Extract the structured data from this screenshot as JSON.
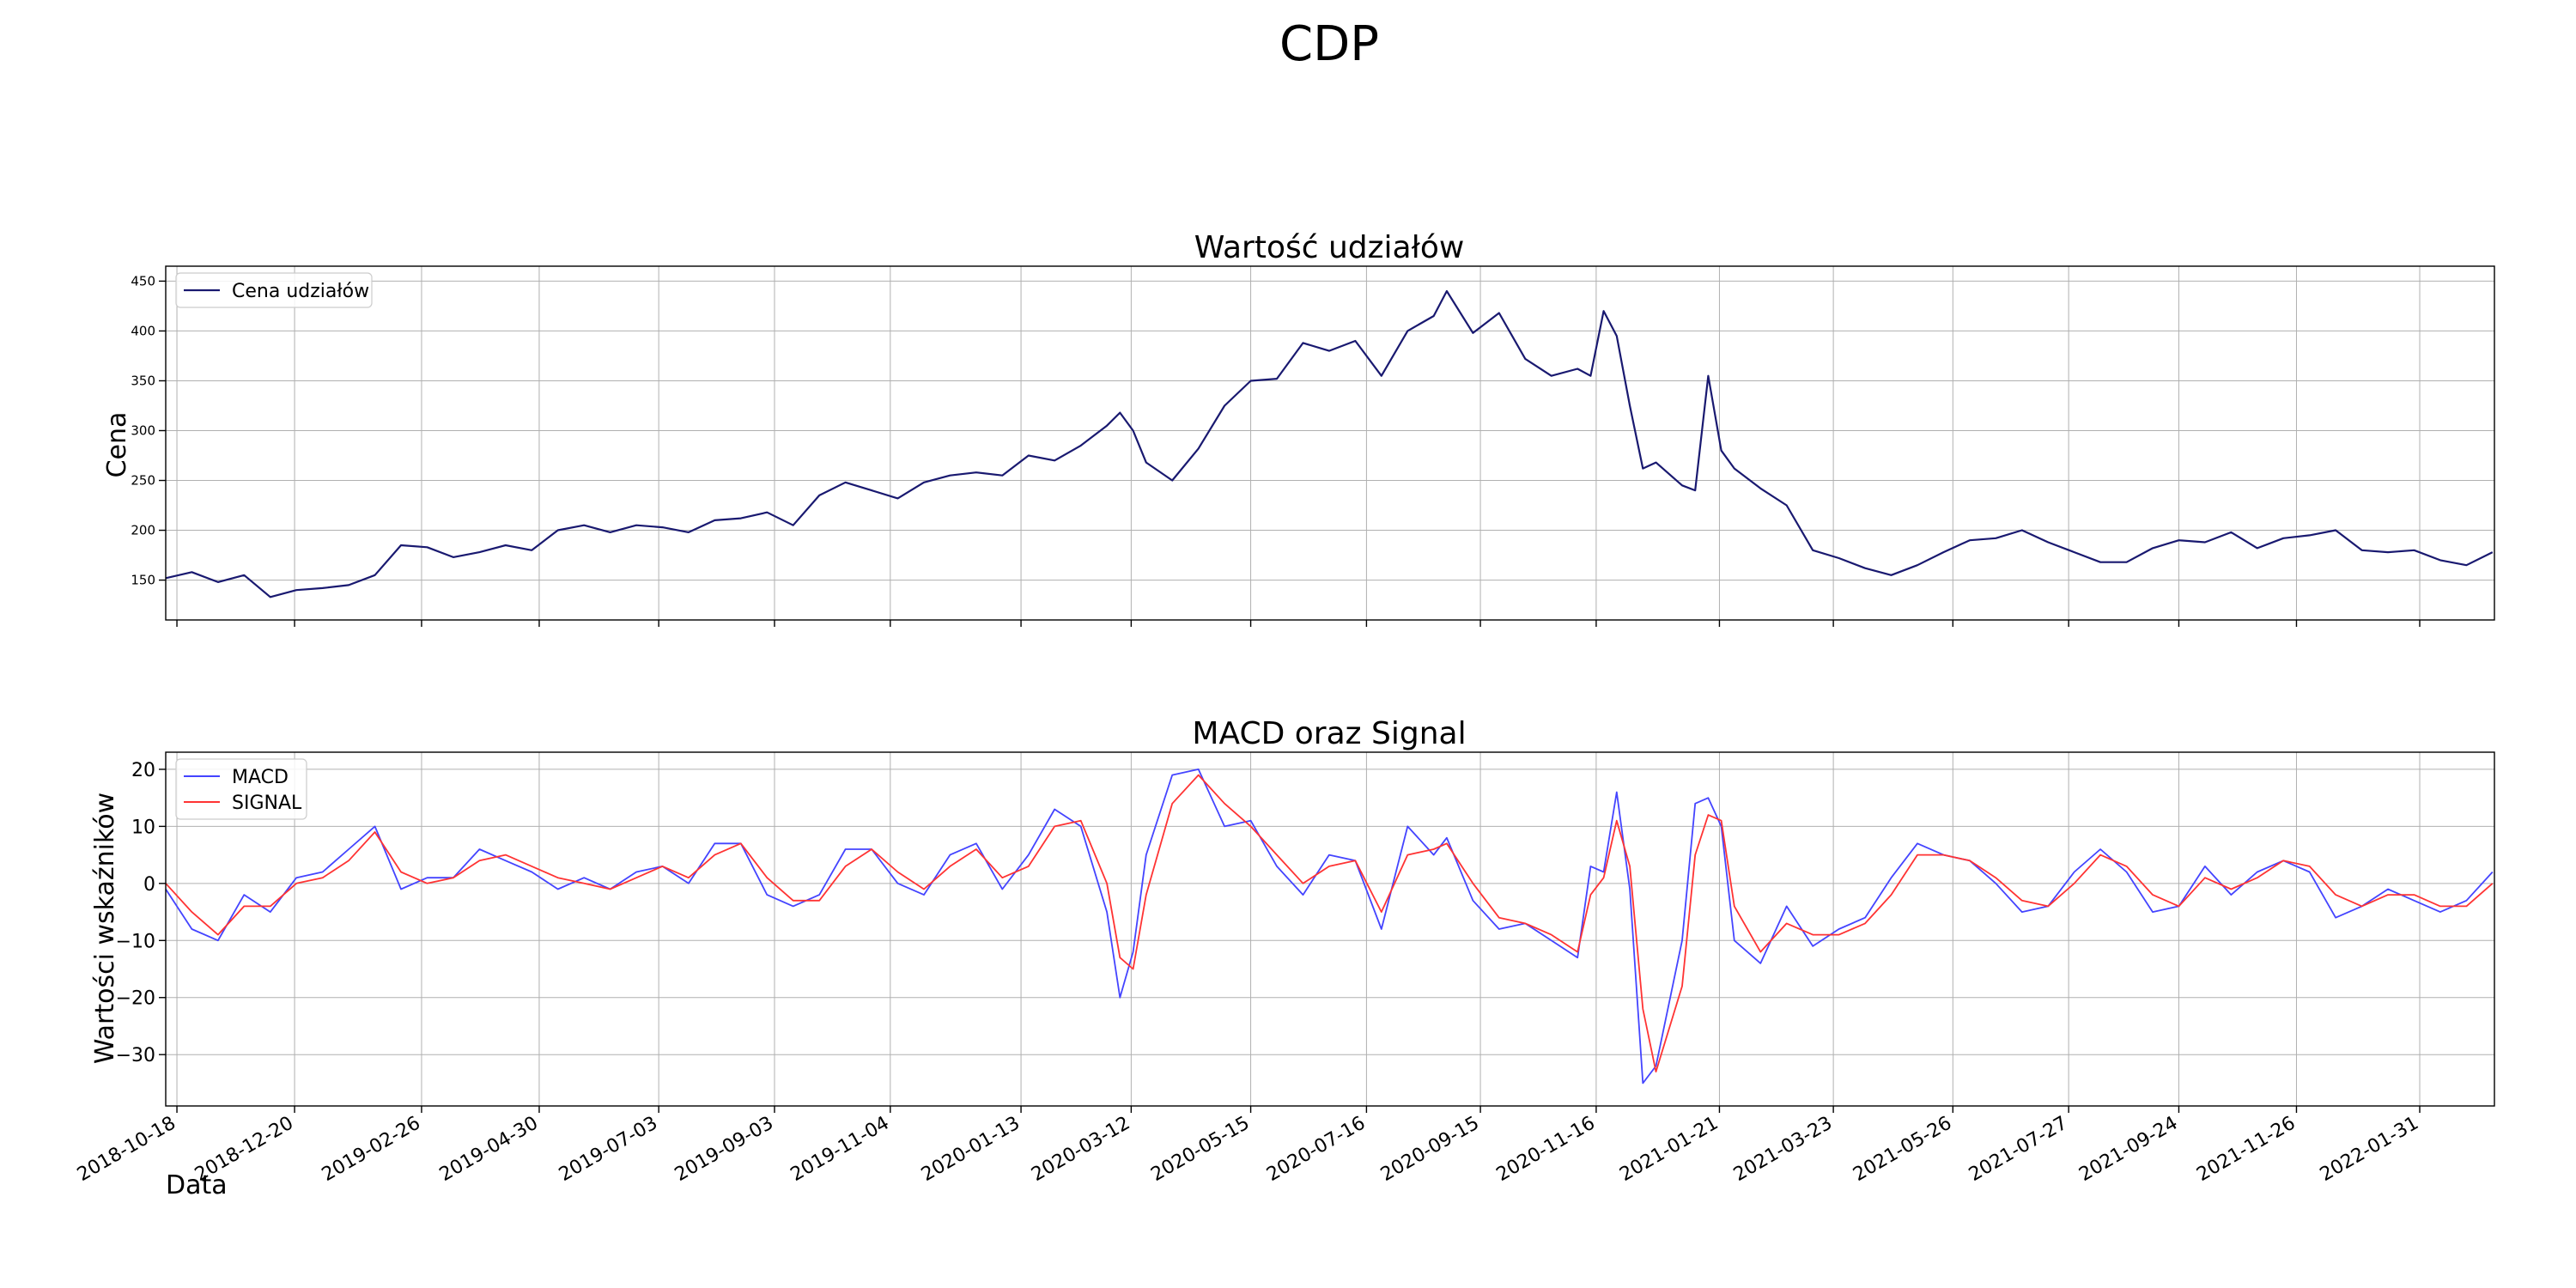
{
  "suptitle": "CDP",
  "xlabel": "Data",
  "chart_data": [
    {
      "type": "line",
      "title": "Wartość udziałów",
      "ylabel": "Cena",
      "xlabel": "",
      "ylim": [
        110,
        465
      ],
      "yticks": [
        150,
        200,
        250,
        300,
        350,
        400,
        450
      ],
      "grid": true,
      "legend": "top-left",
      "series": [
        {
          "name": "Cena udziałów",
          "color": "#191970",
          "x": [
            "2018-10-12",
            "2018-10-26",
            "2018-11-09",
            "2018-11-23",
            "2018-12-07",
            "2018-12-21",
            "2019-01-04",
            "2019-01-18",
            "2019-02-01",
            "2019-02-15",
            "2019-03-01",
            "2019-03-15",
            "2019-03-29",
            "2019-04-12",
            "2019-04-26",
            "2019-05-10",
            "2019-05-24",
            "2019-06-07",
            "2019-06-21",
            "2019-07-05",
            "2019-07-19",
            "2019-08-02",
            "2019-08-16",
            "2019-08-30",
            "2019-09-13",
            "2019-09-27",
            "2019-10-11",
            "2019-10-25",
            "2019-11-08",
            "2019-11-22",
            "2019-12-06",
            "2019-12-20",
            "2020-01-03",
            "2020-01-17",
            "2020-01-31",
            "2020-02-14",
            "2020-02-28",
            "2020-03-06",
            "2020-03-13",
            "2020-03-20",
            "2020-04-03",
            "2020-04-17",
            "2020-05-01",
            "2020-05-15",
            "2020-05-29",
            "2020-06-12",
            "2020-06-26",
            "2020-07-10",
            "2020-07-24",
            "2020-08-07",
            "2020-08-21",
            "2020-08-28",
            "2020-09-11",
            "2020-09-25",
            "2020-10-09",
            "2020-10-23",
            "2020-11-06",
            "2020-11-13",
            "2020-11-20",
            "2020-11-27",
            "2020-12-04",
            "2020-12-11",
            "2020-12-18",
            "2021-01-01",
            "2021-01-08",
            "2021-01-15",
            "2021-01-22",
            "2021-01-29",
            "2021-02-12",
            "2021-02-26",
            "2021-03-12",
            "2021-03-26",
            "2021-04-09",
            "2021-04-23",
            "2021-05-07",
            "2021-05-21",
            "2021-06-04",
            "2021-06-18",
            "2021-07-02",
            "2021-07-16",
            "2021-07-30",
            "2021-08-13",
            "2021-08-27",
            "2021-09-10",
            "2021-09-24",
            "2021-10-08",
            "2021-10-22",
            "2021-11-05",
            "2021-11-19",
            "2021-12-03",
            "2021-12-17",
            "2021-12-31",
            "2022-01-14",
            "2022-01-28",
            "2022-02-11",
            "2022-02-25",
            "2022-03-11"
          ],
          "y": [
            152,
            158,
            148,
            155,
            133,
            140,
            142,
            145,
            155,
            185,
            183,
            173,
            178,
            185,
            180,
            200,
            205,
            198,
            205,
            203,
            198,
            210,
            212,
            218,
            205,
            235,
            248,
            240,
            232,
            248,
            255,
            258,
            255,
            275,
            270,
            285,
            305,
            318,
            300,
            268,
            250,
            282,
            325,
            350,
            352,
            388,
            380,
            390,
            355,
            400,
            415,
            440,
            398,
            418,
            372,
            355,
            362,
            355,
            420,
            395,
            325,
            262,
            268,
            245,
            240,
            355,
            280,
            262,
            242,
            225,
            180,
            172,
            162,
            155,
            165,
            178,
            190,
            192,
            200,
            188,
            178,
            168,
            168,
            182,
            190,
            188,
            198,
            182,
            192,
            195,
            200,
            180,
            178,
            180,
            170,
            165,
            178
          ]
        }
      ]
    },
    {
      "type": "line",
      "title": "MACD oraz Signal",
      "ylabel": "Wartości wskaźników",
      "xlabel": "Data",
      "ylim": [
        -39,
        23
      ],
      "yticks": [
        -30,
        -20,
        -10,
        0,
        10,
        20
      ],
      "xticks": [
        "2018-10-18",
        "2018-12-20",
        "2019-02-26",
        "2019-04-30",
        "2019-07-03",
        "2019-09-03",
        "2019-11-04",
        "2020-01-13",
        "2020-03-12",
        "2020-05-15",
        "2020-07-16",
        "2020-09-15",
        "2020-11-16",
        "2021-01-21",
        "2021-03-23",
        "2021-05-26",
        "2021-07-27",
        "2021-09-24",
        "2021-11-26",
        "2022-01-31"
      ],
      "grid": true,
      "legend": "top-left",
      "series": [
        {
          "name": "MACD",
          "color": "#4444ff",
          "x": [
            "2018-10-12",
            "2018-10-26",
            "2018-11-09",
            "2018-11-23",
            "2018-12-07",
            "2018-12-21",
            "2019-01-04",
            "2019-01-18",
            "2019-02-01",
            "2019-02-15",
            "2019-03-01",
            "2019-03-15",
            "2019-03-29",
            "2019-04-12",
            "2019-04-26",
            "2019-05-10",
            "2019-05-24",
            "2019-06-07",
            "2019-06-21",
            "2019-07-05",
            "2019-07-19",
            "2019-08-02",
            "2019-08-16",
            "2019-08-30",
            "2019-09-13",
            "2019-09-27",
            "2019-10-11",
            "2019-10-25",
            "2019-11-08",
            "2019-11-22",
            "2019-12-06",
            "2019-12-20",
            "2020-01-03",
            "2020-01-17",
            "2020-01-31",
            "2020-02-14",
            "2020-02-28",
            "2020-03-06",
            "2020-03-13",
            "2020-03-20",
            "2020-04-03",
            "2020-04-17",
            "2020-05-01",
            "2020-05-15",
            "2020-05-29",
            "2020-06-12",
            "2020-06-26",
            "2020-07-10",
            "2020-07-24",
            "2020-08-07",
            "2020-08-21",
            "2020-08-28",
            "2020-09-11",
            "2020-09-25",
            "2020-10-09",
            "2020-10-23",
            "2020-11-06",
            "2020-11-13",
            "2020-11-20",
            "2020-11-27",
            "2020-12-04",
            "2020-12-11",
            "2020-12-18",
            "2021-01-01",
            "2021-01-08",
            "2021-01-15",
            "2021-01-22",
            "2021-01-29",
            "2021-02-12",
            "2021-02-26",
            "2021-03-12",
            "2021-03-26",
            "2021-04-09",
            "2021-04-23",
            "2021-05-07",
            "2021-05-21",
            "2021-06-04",
            "2021-06-18",
            "2021-07-02",
            "2021-07-16",
            "2021-07-30",
            "2021-08-13",
            "2021-08-27",
            "2021-09-10",
            "2021-09-24",
            "2021-10-08",
            "2021-10-22",
            "2021-11-05",
            "2021-11-19",
            "2021-12-03",
            "2021-12-17",
            "2021-12-31",
            "2022-01-14",
            "2022-01-28",
            "2022-02-11",
            "2022-02-25",
            "2022-03-11"
          ],
          "y": [
            -1,
            -8,
            -10,
            -2,
            -5,
            1,
            2,
            6,
            10,
            -1,
            1,
            1,
            6,
            4,
            2,
            -1,
            1,
            -1,
            2,
            3,
            0,
            7,
            7,
            -2,
            -4,
            -2,
            6,
            6,
            0,
            -2,
            5,
            7,
            -1,
            5,
            13,
            10,
            -5,
            -20,
            -12,
            5,
            19,
            20,
            10,
            11,
            3,
            -2,
            5,
            4,
            -8,
            10,
            5,
            8,
            -3,
            -8,
            -7,
            -10,
            -13,
            3,
            2,
            16,
            -1,
            -35,
            -32,
            -10,
            14,
            15,
            10,
            -10,
            -14,
            -4,
            -11,
            -8,
            -6,
            1,
            7,
            5,
            4,
            0,
            -5,
            -4,
            2,
            6,
            2,
            -5,
            -4,
            3,
            -2,
            2,
            4,
            2,
            -6,
            -4,
            -1,
            -3,
            -5,
            -3,
            2
          ]
        },
        {
          "name": "SIGNAL",
          "color": "#ff3333",
          "x": [
            "2018-10-12",
            "2018-10-26",
            "2018-11-09",
            "2018-11-23",
            "2018-12-07",
            "2018-12-21",
            "2019-01-04",
            "2019-01-18",
            "2019-02-01",
            "2019-02-15",
            "2019-03-01",
            "2019-03-15",
            "2019-03-29",
            "2019-04-12",
            "2019-04-26",
            "2019-05-10",
            "2019-05-24",
            "2019-06-07",
            "2019-06-21",
            "2019-07-05",
            "2019-07-19",
            "2019-08-02",
            "2019-08-16",
            "2019-08-30",
            "2019-09-13",
            "2019-09-27",
            "2019-10-11",
            "2019-10-25",
            "2019-11-08",
            "2019-11-22",
            "2019-12-06",
            "2019-12-20",
            "2020-01-03",
            "2020-01-17",
            "2020-01-31",
            "2020-02-14",
            "2020-02-28",
            "2020-03-06",
            "2020-03-13",
            "2020-03-20",
            "2020-04-03",
            "2020-04-17",
            "2020-05-01",
            "2020-05-15",
            "2020-05-29",
            "2020-06-12",
            "2020-06-26",
            "2020-07-10",
            "2020-07-24",
            "2020-08-07",
            "2020-08-21",
            "2020-08-28",
            "2020-09-11",
            "2020-09-25",
            "2020-10-09",
            "2020-10-23",
            "2020-11-06",
            "2020-11-13",
            "2020-11-20",
            "2020-11-27",
            "2020-12-04",
            "2020-12-11",
            "2020-12-18",
            "2021-01-01",
            "2021-01-08",
            "2021-01-15",
            "2021-01-22",
            "2021-01-29",
            "2021-02-12",
            "2021-02-26",
            "2021-03-12",
            "2021-03-26",
            "2021-04-09",
            "2021-04-23",
            "2021-05-07",
            "2021-05-21",
            "2021-06-04",
            "2021-06-18",
            "2021-07-02",
            "2021-07-16",
            "2021-07-30",
            "2021-08-13",
            "2021-08-27",
            "2021-09-10",
            "2021-09-24",
            "2021-10-08",
            "2021-10-22",
            "2021-11-05",
            "2021-11-19",
            "2021-12-03",
            "2021-12-17",
            "2021-12-31",
            "2022-01-14",
            "2022-01-28",
            "2022-02-11",
            "2022-02-25",
            "2022-03-11"
          ],
          "y": [
            0,
            -5,
            -9,
            -4,
            -4,
            0,
            1,
            4,
            9,
            2,
            0,
            1,
            4,
            5,
            3,
            1,
            0,
            -1,
            1,
            3,
            1,
            5,
            7,
            1,
            -3,
            -3,
            3,
            6,
            2,
            -1,
            3,
            6,
            1,
            3,
            10,
            11,
            0,
            -13,
            -15,
            -2,
            14,
            19,
            14,
            10,
            5,
            0,
            3,
            4,
            -5,
            5,
            6,
            7,
            0,
            -6,
            -7,
            -9,
            -12,
            -2,
            1,
            11,
            3,
            -22,
            -33,
            -18,
            5,
            12,
            11,
            -4,
            -12,
            -7,
            -9,
            -9,
            -7,
            -2,
            5,
            5,
            4,
            1,
            -3,
            -4,
            0,
            5,
            3,
            -2,
            -4,
            1,
            -1,
            1,
            4,
            3,
            -2,
            -4,
            -2,
            -2,
            -4,
            -4,
            0
          ]
        }
      ]
    }
  ]
}
